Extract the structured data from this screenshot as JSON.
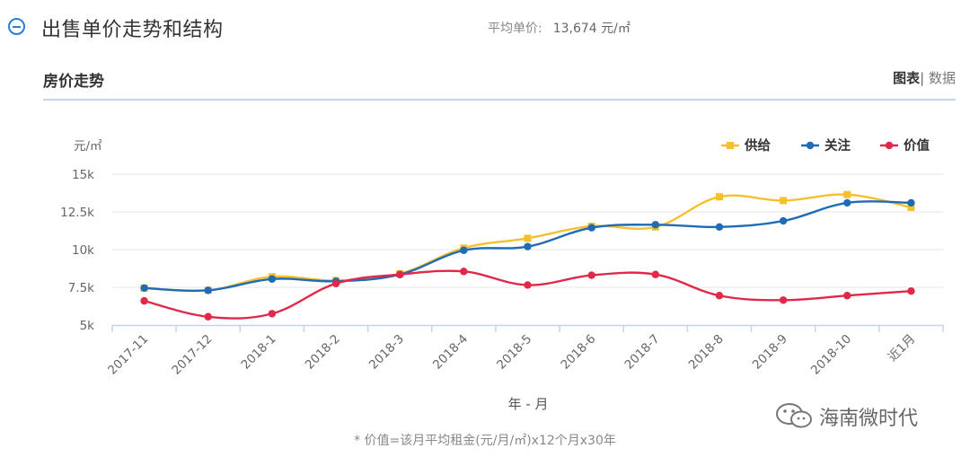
{
  "header": {
    "title": "出售单价走势和结构",
    "avg_label": "平均单价:",
    "avg_value": "13,674 元/㎡"
  },
  "subheader": {
    "title": "房价走势",
    "view_chart": "图表",
    "view_separator": "|",
    "view_data": "数据"
  },
  "chart_data": {
    "type": "line",
    "ylabel": "元/㎡",
    "xlabel": "年 - 月",
    "categories": [
      "2017-11",
      "2017-12",
      "2018-1",
      "2018-2",
      "2018-3",
      "2018-4",
      "2018-5",
      "2018-6",
      "2018-7",
      "2018-8",
      "2018-9",
      "2018-10",
      "近1月"
    ],
    "ylim": [
      5000,
      15000
    ],
    "yticks": [
      5000,
      7500,
      10000,
      12500,
      15000
    ],
    "ytick_labels": [
      "5k",
      "7.5k",
      "10k",
      "12.5k",
      "15k"
    ],
    "grid": true,
    "legend_position": "top-right",
    "series": [
      {
        "name": "供给",
        "color": "#f5c02c",
        "values": [
          7450,
          7300,
          8200,
          7950,
          8400,
          10100,
          10750,
          11550,
          11500,
          13500,
          13250,
          13650,
          12800
        ]
      },
      {
        "name": "关注",
        "color": "#1f6bb5",
        "values": [
          7450,
          7300,
          8050,
          7900,
          8350,
          9950,
          10200,
          11450,
          11650,
          11500,
          11900,
          13100,
          13100
        ]
      },
      {
        "name": "价值",
        "color": "#e0294a",
        "values": [
          6600,
          5550,
          5750,
          7750,
          8350,
          8550,
          7650,
          8300,
          8350,
          6950,
          6650,
          6950,
          7250
        ]
      }
    ]
  },
  "watermark": {
    "text": "海南微时代"
  },
  "footnote": "* 价值=该月平均租金(元/月/㎡)x12个月x30年"
}
